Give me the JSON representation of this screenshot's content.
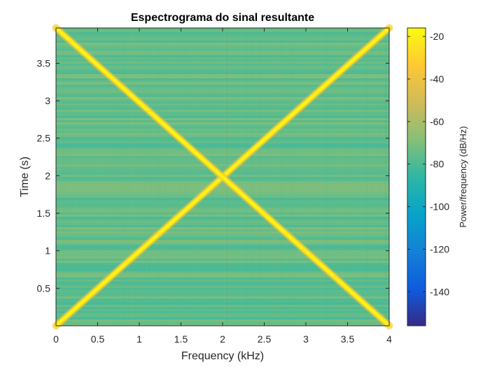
{
  "chart_data": {
    "type": "heatmap",
    "title": "Espectrograma do sinal resultante",
    "xlabel": "Frequency (kHz)",
    "ylabel": "Time (s)",
    "xlim": [
      0,
      4
    ],
    "ylim": [
      0,
      3.97
    ],
    "x_ticks": [
      0,
      0.5,
      1,
      1.5,
      2,
      2.5,
      3,
      3.5,
      4
    ],
    "x_tick_labels": [
      "0",
      "0.5",
      "1",
      "1.5",
      "2",
      "2.5",
      "3",
      "3.5",
      "4"
    ],
    "y_ticks": [
      0.5,
      1,
      1.5,
      2,
      2.5,
      3,
      3.5
    ],
    "y_tick_labels": [
      "0.5",
      "1",
      "1.5",
      "2",
      "2.5",
      "3",
      "3.5"
    ],
    "colorbar": {
      "label": "Power/frequency (dB/Hz)",
      "range": [
        -156,
        -16
      ],
      "ticks": [
        -20,
        -40,
        -60,
        -80,
        -100,
        -120,
        -140
      ],
      "tick_labels": [
        "-20",
        "-40",
        "-60",
        "-80",
        "-100",
        "-120",
        "-140"
      ],
      "colormap": "parula"
    },
    "series": [
      {
        "x": [
          0,
          4
        ],
        "y": [
          0,
          3.97
        ],
        "level_db": -18
      },
      {
        "x": [
          0,
          4
        ],
        "y": [
          3.97,
          0
        ],
        "level_db": -18
      }
    ],
    "background_level_db": -75,
    "grid": false,
    "legend": "none"
  },
  "colors": {
    "axis": "#262626",
    "parula": [
      "#352a87",
      "#0f5cdd",
      "#1481d6",
      "#06a4ca",
      "#2eb7a4",
      "#87bf77",
      "#d1bb59",
      "#fec832",
      "#f9fb0e"
    ]
  }
}
